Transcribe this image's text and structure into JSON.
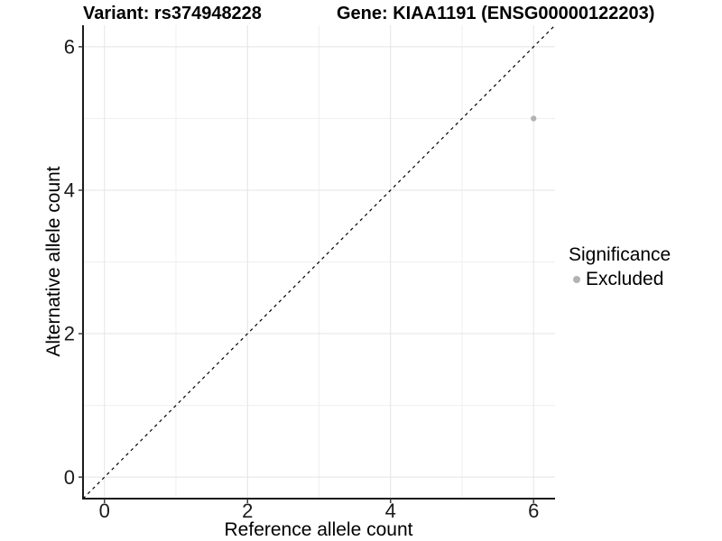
{
  "chart_data": {
    "type": "scatter",
    "variant_title": "Variant: rs374948228",
    "gene_title": "Gene: KIAA1191 (ENSG00000122203)",
    "xlabel": "Reference allele count",
    "ylabel": "Alternative allele count",
    "xlim": [
      -0.3,
      6.3
    ],
    "ylim": [
      -0.3,
      6.3
    ],
    "x_ticks": [
      0,
      2,
      4,
      6
    ],
    "y_ticks": [
      0,
      2,
      4,
      6
    ],
    "x_minor_ticks": [
      1,
      3,
      5
    ],
    "y_minor_ticks": [
      1,
      3,
      5
    ],
    "grid": "major+minor",
    "identity_line": {
      "style": "dashed",
      "color": "#000000",
      "from": {
        "x": -0.3,
        "y": -0.3
      },
      "to": {
        "x": 6.3,
        "y": 6.3
      }
    },
    "series": [
      {
        "name": "Excluded",
        "color": "#b3b3b3",
        "points": [
          {
            "x": 6,
            "y": 5
          }
        ]
      }
    ],
    "legend": {
      "title": "Significance",
      "position": "right",
      "entries": [
        {
          "label": "Excluded",
          "color": "#b3b3b3",
          "marker": "circle"
        }
      ]
    }
  },
  "colors": {
    "background": "#ffffff",
    "axis_line": "#1a1a1a",
    "tick_mark": "#333333",
    "grid_major": "#e4e4e4",
    "grid_minor": "#efefef",
    "text": "#1a1a1a",
    "point": "#b3b3b3"
  }
}
